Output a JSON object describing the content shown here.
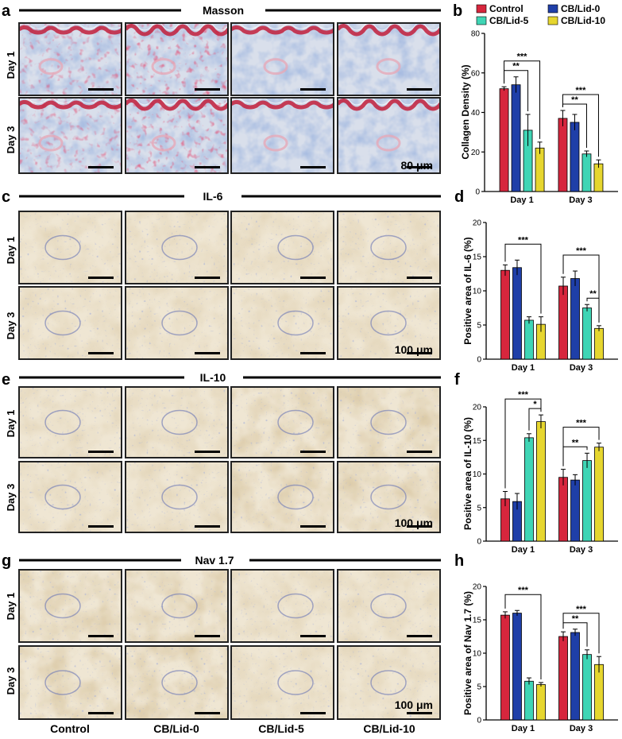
{
  "figure": {
    "panel_letters": [
      "a",
      "b",
      "c",
      "d",
      "e",
      "f",
      "g",
      "h"
    ],
    "sections": [
      {
        "title": "Masson",
        "scale_bar": "80 μm"
      },
      {
        "title": "IL-6",
        "scale_bar": "100 μm"
      },
      {
        "title": "IL-10",
        "scale_bar": "100 μm"
      },
      {
        "title": "Nav 1.7",
        "scale_bar": "100 μm"
      }
    ],
    "row_labels": [
      "Day 1",
      "Day 3"
    ],
    "column_labels": [
      "Control",
      "CB/Lid-0",
      "CB/Lid-5",
      "CB/Lid-10"
    ],
    "stain_colors": {
      "masson": {
        "base": "#d9dfeb",
        "blue": "#6f8fc4",
        "red": "#c21f3b",
        "pink": "#e6a9b8"
      },
      "ihc": {
        "base": "#efe6d3",
        "nuclei": "#6a77b5",
        "brown": "#a8773f",
        "frame": "#222222"
      }
    }
  },
  "chart_data": [
    {
      "type": "bar",
      "panel": "b",
      "categories": [
        "Day 1",
        "Day 3"
      ],
      "ylabel": "Collagen Density (%)",
      "ylim": [
        0,
        80
      ],
      "yticks": [
        0,
        20,
        40,
        60,
        80
      ],
      "series": [
        {
          "name": "Control",
          "color": "#d7263d",
          "values": [
            52,
            37
          ],
          "errors": [
            1,
            4
          ]
        },
        {
          "name": "CB/Lid-0",
          "color": "#1f3fa8",
          "values": [
            54,
            35
          ],
          "errors": [
            4,
            4
          ]
        },
        {
          "name": "CB/Lid-5",
          "color": "#3fd5b5",
          "values": [
            31,
            19
          ],
          "errors": [
            8,
            1.5
          ]
        },
        {
          "name": "CB/Lid-10",
          "color": "#e6d62f",
          "values": [
            22,
            14
          ],
          "errors": [
            3,
            2
          ]
        }
      ],
      "significance": [
        {
          "category": 0,
          "from": 0,
          "to": 3,
          "label": "***"
        },
        {
          "category": 0,
          "from": 0,
          "to": 2,
          "label": "**"
        },
        {
          "category": 1,
          "from": 0,
          "to": 3,
          "label": "***"
        },
        {
          "category": 1,
          "from": 0,
          "to": 2,
          "label": "**"
        }
      ]
    },
    {
      "type": "bar",
      "panel": "d",
      "categories": [
        "Day 1",
        "Day 3"
      ],
      "ylabel": "Positive  area of IL-6 (%)",
      "ylim": [
        0,
        20
      ],
      "yticks": [
        0,
        5,
        10,
        15,
        20
      ],
      "series": [
        {
          "name": "Control",
          "color": "#d7263d",
          "values": [
            13.0,
            10.7
          ],
          "errors": [
            0.8,
            1.3
          ]
        },
        {
          "name": "CB/Lid-0",
          "color": "#1f3fa8",
          "values": [
            13.4,
            11.8
          ],
          "errors": [
            1.1,
            1.1
          ]
        },
        {
          "name": "CB/Lid-5",
          "color": "#3fd5b5",
          "values": [
            5.7,
            7.5
          ],
          "errors": [
            0.5,
            0.5
          ]
        },
        {
          "name": "CB/Lid-10",
          "color": "#e6d62f",
          "values": [
            5.1,
            4.5
          ],
          "errors": [
            1.1,
            0.4
          ]
        }
      ],
      "significance": [
        {
          "category": 0,
          "from": 0,
          "to": 3,
          "label": "***"
        },
        {
          "category": 1,
          "from": 0,
          "to": 3,
          "label": "***"
        },
        {
          "category": 1,
          "from": 2,
          "to": 3,
          "label": "**"
        }
      ]
    },
    {
      "type": "bar",
      "panel": "f",
      "categories": [
        "Day 1",
        "Day 3"
      ],
      "ylabel": "Positive  area of IL-10 (%)",
      "ylim": [
        0,
        20
      ],
      "yticks": [
        0,
        5,
        10,
        15,
        20
      ],
      "series": [
        {
          "name": "Control",
          "color": "#d7263d",
          "values": [
            6.3,
            9.5
          ],
          "errors": [
            1.1,
            1.2
          ]
        },
        {
          "name": "CB/Lid-0",
          "color": "#1f3fa8",
          "values": [
            5.9,
            9.1
          ],
          "errors": [
            1.2,
            0.8
          ]
        },
        {
          "name": "CB/Lid-5",
          "color": "#3fd5b5",
          "values": [
            15.4,
            12.0
          ],
          "errors": [
            0.6,
            1.1
          ]
        },
        {
          "name": "CB/Lid-10",
          "color": "#e6d62f",
          "values": [
            17.8,
            14.0
          ],
          "errors": [
            1.0,
            0.6
          ]
        }
      ],
      "significance": [
        {
          "category": 0,
          "from": 0,
          "to": 3,
          "label": "***"
        },
        {
          "category": 0,
          "from": 2,
          "to": 3,
          "label": "*"
        },
        {
          "category": 1,
          "from": 0,
          "to": 3,
          "label": "***"
        },
        {
          "category": 1,
          "from": 0,
          "to": 2,
          "label": "**"
        }
      ]
    },
    {
      "type": "bar",
      "panel": "h",
      "categories": [
        "Day 1",
        "Day 3"
      ],
      "ylabel": "Positive  area of Nav 1.7 (%)",
      "ylim": [
        0,
        20
      ],
      "yticks": [
        0,
        5,
        10,
        15,
        20
      ],
      "series": [
        {
          "name": "Control",
          "color": "#d7263d",
          "values": [
            15.7,
            12.5
          ],
          "errors": [
            0.5,
            0.7
          ]
        },
        {
          "name": "CB/Lid-0",
          "color": "#1f3fa8",
          "values": [
            16.0,
            13.1
          ],
          "errors": [
            0.4,
            0.5
          ]
        },
        {
          "name": "CB/Lid-5",
          "color": "#3fd5b5",
          "values": [
            5.8,
            9.8
          ],
          "errors": [
            0.5,
            0.7
          ]
        },
        {
          "name": "CB/Lid-10",
          "color": "#e6d62f",
          "values": [
            5.3,
            8.3
          ],
          "errors": [
            0.3,
            1.2
          ]
        }
      ],
      "significance": [
        {
          "category": 0,
          "from": 0,
          "to": 3,
          "label": "***"
        },
        {
          "category": 1,
          "from": 0,
          "to": 3,
          "label": "***"
        },
        {
          "category": 1,
          "from": 0,
          "to": 2,
          "label": "**"
        }
      ]
    }
  ]
}
